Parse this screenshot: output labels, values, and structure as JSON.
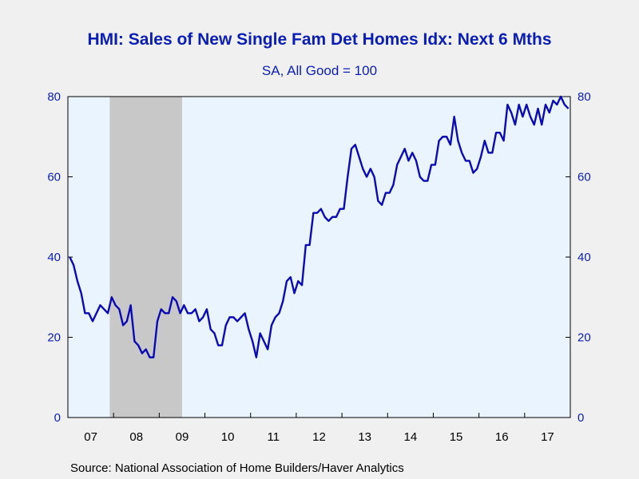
{
  "chart_data": {
    "type": "line",
    "title": "HMI: Sales of New Single Fam Det Homes Idx: Next 6 Mths",
    "subtitle": "SA, All Good = 100",
    "source": "Source:  National Association of Home Builders/Haver Analytics",
    "x_tick_labels": [
      "07",
      "08",
      "09",
      "10",
      "11",
      "12",
      "13",
      "14",
      "15",
      "16",
      "17"
    ],
    "y_ticks": [
      0,
      20,
      40,
      60,
      80
    ],
    "ylim": [
      0,
      80
    ],
    "x_start": "2007-01",
    "x_end": "2017-12",
    "recession": {
      "start": "2007-12",
      "end": "2009-06"
    },
    "series": [
      {
        "color": "#0a0ab4",
        "frequency": "monthly",
        "values": [
          40,
          38,
          34,
          31,
          26,
          26,
          24,
          26,
          28,
          27,
          26,
          30,
          28,
          27,
          23,
          24,
          28,
          19,
          18,
          16,
          17,
          15,
          15,
          24,
          27,
          26,
          26,
          30,
          29,
          26,
          28,
          26,
          26,
          27,
          24,
          25,
          27,
          22,
          21,
          18,
          18,
          23,
          25,
          25,
          24,
          25,
          26,
          22,
          19,
          15,
          21,
          19,
          17,
          23,
          25,
          26,
          29,
          34,
          35,
          31,
          34,
          33,
          43,
          43,
          51,
          51,
          52,
          50,
          49,
          50,
          50,
          52,
          52,
          60,
          67,
          68,
          65,
          62,
          60,
          62,
          60,
          54,
          53,
          56,
          56,
          58,
          63,
          65,
          67,
          64,
          66,
          64,
          60,
          59,
          59,
          63,
          63,
          69,
          70,
          70,
          68,
          75,
          69,
          66,
          64,
          64,
          61,
          62,
          65,
          69,
          66,
          66,
          71,
          71,
          69,
          78,
          76,
          73,
          78,
          75,
          78,
          75,
          73,
          77,
          73,
          78,
          76,
          79,
          78,
          80,
          78,
          77
        ]
      }
    ]
  }
}
